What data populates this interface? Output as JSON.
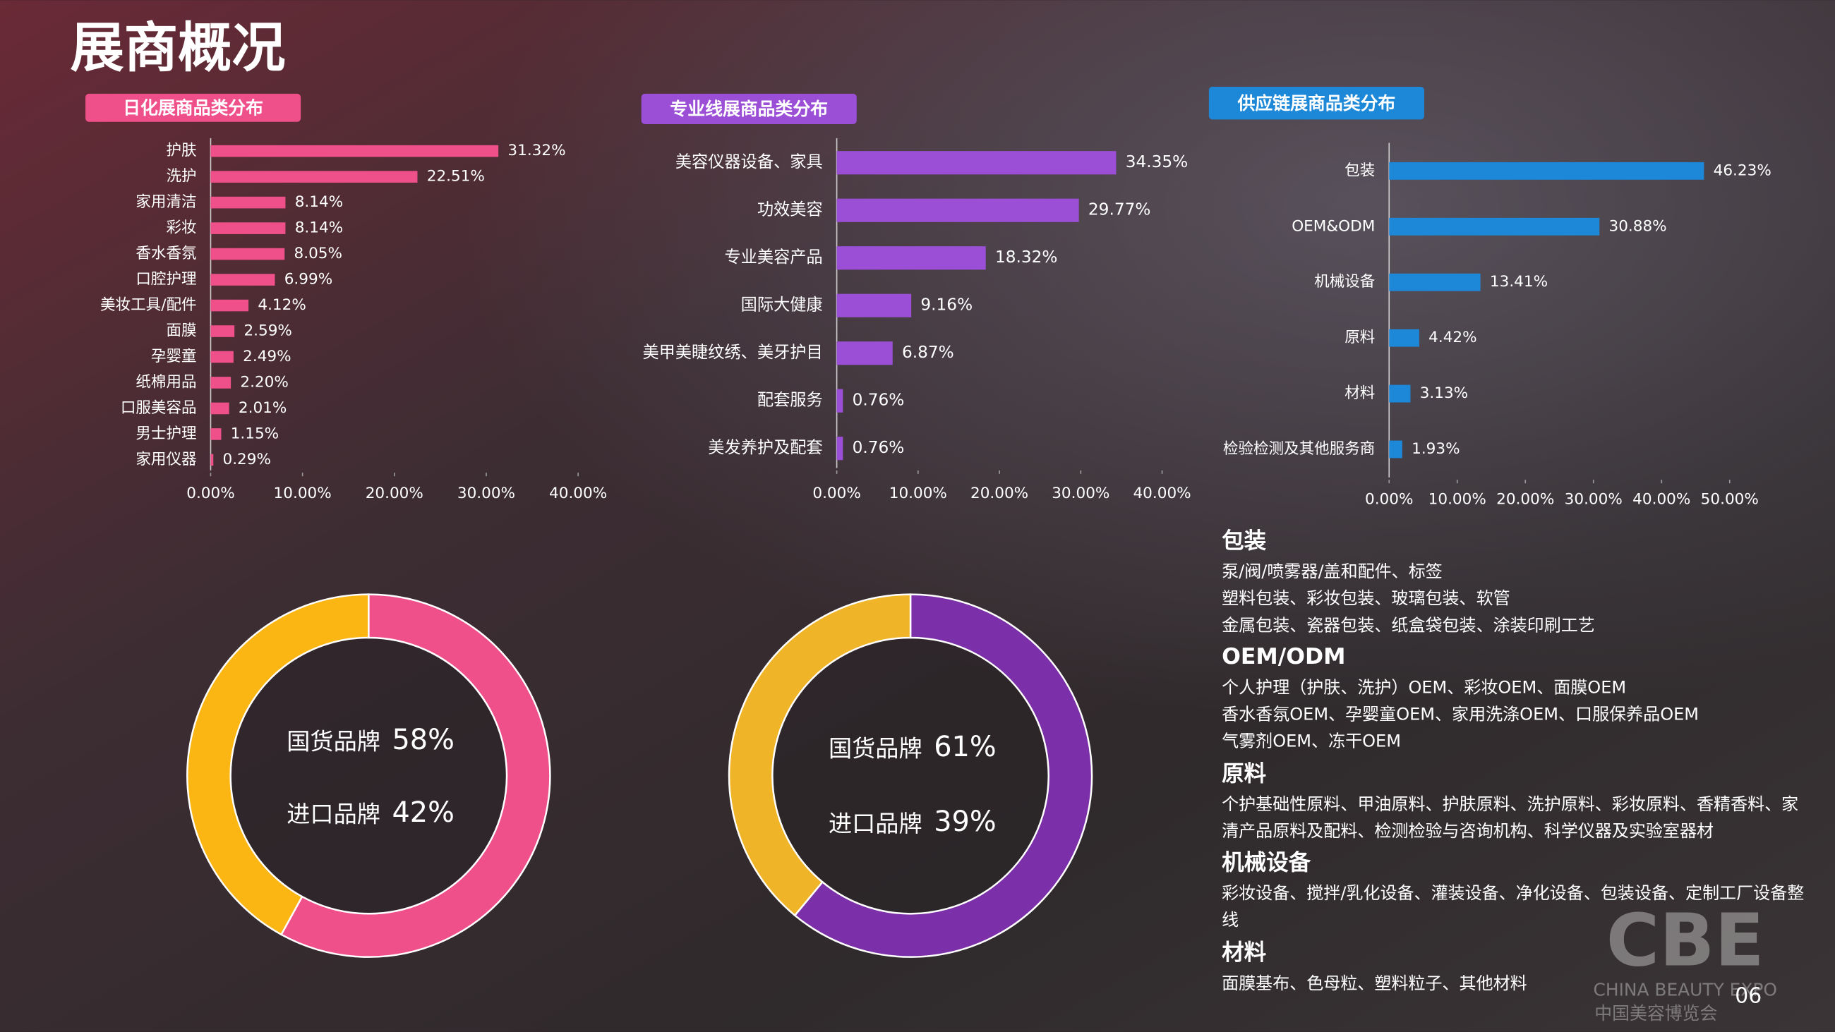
{
  "title": "展商概况",
  "page_number": "06",
  "logo": {
    "mark": "CBE",
    "name": "CHINA BEAUTY EXPO",
    "name_cn": "中国美容博览会"
  },
  "chart_data": [
    {
      "type": "bar",
      "orientation": "horizontal",
      "title": "日化展商品类分布",
      "color": "#f0508a",
      "categories": [
        "护肤",
        "洗护",
        "家用清洁",
        "彩妆",
        "香水香氛",
        "口腔护理",
        "美妆工具/配件",
        "面膜",
        "孕婴童",
        "纸棉用品",
        "口服美容品",
        "男士护理",
        "家用仪器"
      ],
      "values": [
        31.32,
        22.51,
        8.14,
        8.14,
        8.05,
        6.99,
        4.12,
        2.59,
        2.49,
        2.2,
        2.01,
        1.15,
        0.29
      ],
      "value_labels": [
        "31.32%",
        "22.51%",
        "8.14%",
        "8.14%",
        "8.05%",
        "6.99%",
        "4.12%",
        "2.59%",
        "2.49%",
        "2.20%",
        "2.01%",
        "1.15%",
        "0.29%"
      ],
      "xlim": [
        0,
        40
      ],
      "xticks": [
        {
          "value": 0,
          "label": "0.00%"
        },
        {
          "value": 10,
          "label": "10.00%"
        },
        {
          "value": 20,
          "label": "20.00%"
        },
        {
          "value": 30,
          "label": "30.00%"
        },
        {
          "value": 40,
          "label": "40.00%"
        }
      ]
    },
    {
      "type": "bar",
      "orientation": "horizontal",
      "title": "专业线展商品类分布",
      "color": "#9b4fd6",
      "categories": [
        "美容仪器设备、家具",
        "功效美容",
        "专业美容产品",
        "国际大健康",
        "美甲美睫纹绣、美牙护目",
        "配套服务",
        "美发养护及配套"
      ],
      "values": [
        34.35,
        29.77,
        18.32,
        9.16,
        6.87,
        0.76,
        0.76
      ],
      "value_labels": [
        "34.35%",
        "29.77%",
        "18.32%",
        "9.16%",
        "6.87%",
        "0.76%",
        "0.76%"
      ],
      "xlim": [
        0,
        40
      ],
      "xticks": [
        {
          "value": 0,
          "label": "0.00%"
        },
        {
          "value": 10,
          "label": "10.00%"
        },
        {
          "value": 20,
          "label": "20.00%"
        },
        {
          "value": 30,
          "label": "30.00%"
        },
        {
          "value": 40,
          "label": "40.00%"
        }
      ]
    },
    {
      "type": "bar",
      "orientation": "horizontal",
      "title": "供应链展商品类分布",
      "color": "#1e88d8",
      "categories": [
        "包装",
        "OEM&ODM",
        "机械设备",
        "原料",
        "材料",
        "检验检测及其他服务商"
      ],
      "values": [
        46.23,
        30.88,
        13.41,
        4.42,
        3.13,
        1.93
      ],
      "value_labels": [
        "46.23%",
        "30.88%",
        "13.41%",
        "4.42%",
        "3.13%",
        "1.93%"
      ],
      "xlim": [
        0,
        50
      ],
      "xticks": [
        {
          "value": 0,
          "label": "0.00%"
        },
        {
          "value": 10,
          "label": "10.00%"
        },
        {
          "value": 20,
          "label": "20.00%"
        },
        {
          "value": 30,
          "label": "30.00%"
        },
        {
          "value": 40,
          "label": "40.00%"
        },
        {
          "value": 50,
          "label": "50.00%"
        }
      ]
    },
    {
      "type": "pie",
      "donut": true,
      "categories": [
        "国货品牌",
        "进口品牌"
      ],
      "values": [
        58,
        42
      ],
      "value_labels": [
        "58%",
        "42%"
      ],
      "colors": [
        "#f0508a",
        "#fbb614"
      ]
    },
    {
      "type": "pie",
      "donut": true,
      "categories": [
        "国货品牌",
        "进口品牌"
      ],
      "values": [
        61,
        39
      ],
      "value_labels": [
        "61%",
        "39%"
      ],
      "colors": [
        "#7b2fa8",
        "#f0b429"
      ]
    }
  ],
  "details": [
    {
      "heading": "包装",
      "lines": [
        "泵/阀/喷雾器/盖和配件、标签",
        "塑料包装、彩妆包装、玻璃包装、软管",
        "金属包装、瓷器包装、纸盒袋包装、涂装印刷工艺"
      ]
    },
    {
      "heading": "OEM/ODM",
      "lines": [
        "个人护理（护肤、洗护）OEM、彩妆OEM、面膜OEM",
        "香水香氛OEM、孕婴童OEM、家用洗涤OEM、口服保养品OEM",
        "气雾剂OEM、冻干OEM"
      ]
    },
    {
      "heading": "原料",
      "lines": [
        "个护基础性原料、甲油原料、护肤原料、洗护原料、彩妆原料、香精香料、家",
        "清产品原料及配料、检测检验与咨询机构、科学仪器及实验室器材"
      ]
    },
    {
      "heading": "机械设备",
      "lines": [
        "彩妆设备、搅拌/乳化设备、灌装设备、净化设备、包装设备、定制工厂设备整",
        "线"
      ]
    },
    {
      "heading": "材料",
      "lines": [
        "面膜基布、色母粒、塑料粒子、其他材料"
      ]
    }
  ]
}
